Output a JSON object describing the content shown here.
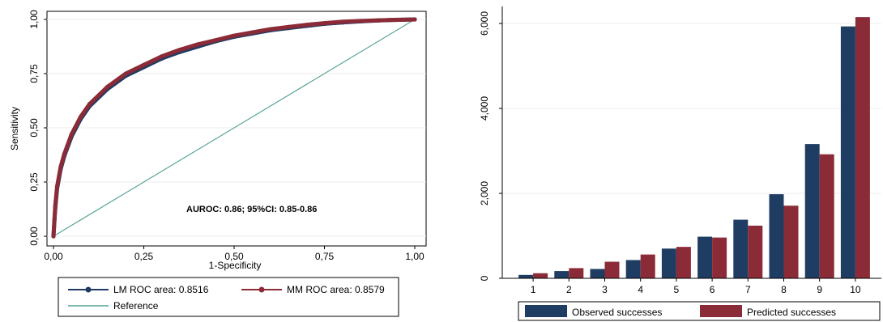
{
  "chart_data": [
    {
      "type": "line",
      "xlabel": "1-Specificity",
      "ylabel": "Sensitivity",
      "xlim": [
        0,
        1
      ],
      "ylim": [
        0,
        1
      ],
      "x_ticks": [
        "0,00",
        "0,25",
        "0,50",
        "0,75",
        "1,00"
      ],
      "y_ticks": [
        "0,00",
        "0,25",
        "0,50",
        "0,75",
        "1,00"
      ],
      "annotation": "AUROC: 0.86; 95%CI: 0.85-0.86",
      "legend_position": "bottom",
      "series": [
        {
          "name": "LM ROC area: 0.8516",
          "color": "#1f3b63",
          "marker": "circle",
          "x": [
            0,
            0.005,
            0.01,
            0.02,
            0.03,
            0.05,
            0.075,
            0.1,
            0.15,
            0.2,
            0.25,
            0.3,
            0.35,
            0.4,
            0.45,
            0.5,
            0.55,
            0.6,
            0.65,
            0.7,
            0.75,
            0.8,
            0.85,
            0.9,
            0.95,
            1.0
          ],
          "y": [
            0,
            0.13,
            0.22,
            0.31,
            0.37,
            0.46,
            0.54,
            0.6,
            0.68,
            0.74,
            0.78,
            0.82,
            0.85,
            0.875,
            0.9,
            0.92,
            0.935,
            0.95,
            0.96,
            0.97,
            0.98,
            0.986,
            0.991,
            0.995,
            0.998,
            1.0
          ]
        },
        {
          "name": "MM ROC area: 0.8579",
          "color": "#8b2b37",
          "marker": "circle",
          "x": [
            0,
            0.005,
            0.01,
            0.02,
            0.03,
            0.05,
            0.075,
            0.1,
            0.15,
            0.2,
            0.25,
            0.3,
            0.35,
            0.4,
            0.45,
            0.5,
            0.55,
            0.6,
            0.65,
            0.7,
            0.75,
            0.8,
            0.85,
            0.9,
            0.95,
            1.0
          ],
          "y": [
            0,
            0.14,
            0.23,
            0.32,
            0.38,
            0.47,
            0.55,
            0.61,
            0.69,
            0.75,
            0.79,
            0.83,
            0.86,
            0.885,
            0.905,
            0.925,
            0.94,
            0.955,
            0.965,
            0.975,
            0.983,
            0.989,
            0.993,
            0.996,
            0.998,
            1.0
          ]
        },
        {
          "name": "Reference",
          "color": "#5aa59a",
          "marker": "none",
          "x": [
            0,
            1
          ],
          "y": [
            0,
            1
          ]
        }
      ]
    },
    {
      "type": "bar",
      "categories": [
        "1",
        "2",
        "3",
        "4",
        "5",
        "6",
        "7",
        "8",
        "9",
        "10"
      ],
      "ylim": [
        0,
        6400
      ],
      "y_ticks": [
        0,
        2000,
        4000,
        6000
      ],
      "y_tick_labels": [
        "0",
        "2,000",
        "4,000",
        "6,000"
      ],
      "legend_position": "bottom",
      "series": [
        {
          "name": "Observed successes",
          "color": "#1f3d63",
          "values": [
            80,
            170,
            220,
            430,
            700,
            980,
            1380,
            1980,
            3160,
            5930
          ]
        },
        {
          "name": "Predicted successes",
          "color": "#8b2b37",
          "values": [
            120,
            240,
            390,
            560,
            740,
            960,
            1240,
            1710,
            2920,
            6150
          ]
        }
      ]
    }
  ]
}
